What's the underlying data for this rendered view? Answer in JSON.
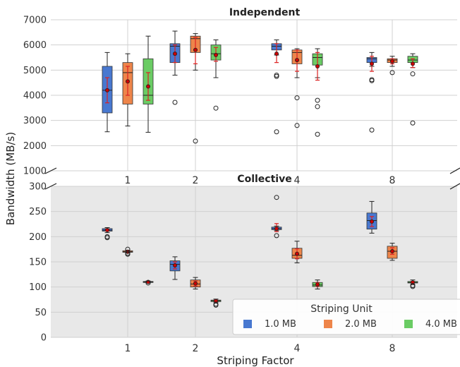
{
  "chart_data": [
    {
      "type": "box",
      "title": "Independent",
      "xlabel": "Striping Factor",
      "ylabel": "Bandwidth (MB/s)",
      "ylim": [
        1000,
        7000
      ],
      "yticks": [
        1000,
        2000,
        3000,
        4000,
        5000,
        6000,
        7000
      ],
      "background": "#ffffff",
      "grid": true,
      "categories": [
        "1",
        "2",
        "4",
        "8"
      ],
      "series": [
        {
          "name": "1.0 MB",
          "color": "#4878d0",
          "boxes": [
            {
              "min": 2550,
              "q1": 3300,
              "median": 4200,
              "q3": 5150,
              "max": 5700,
              "mean": 4200,
              "err": [
                3700,
                4700
              ],
              "outliers": []
            },
            {
              "min": 4800,
              "q1": 5300,
              "median": 5950,
              "q3": 6050,
              "max": 6550,
              "mean": 5650,
              "err": [
                5300,
                6000
              ],
              "outliers": [
                3720
              ]
            },
            {
              "min": 5600,
              "q1": 5800,
              "median": 5950,
              "q3": 6050,
              "max": 6200,
              "mean": 5650,
              "err": [
                5300,
                6050
              ],
              "outliers": [
                4800,
                4750,
                2550
              ]
            },
            {
              "min": 5150,
              "q1": 5300,
              "median": 5450,
              "q3": 5500,
              "max": 5700,
              "mean": 5250,
              "err": [
                4950,
                5550
              ],
              "outliers": [
                4620,
                4580,
                2620
              ]
            }
          ]
        },
        {
          "name": "2.0 MB",
          "color": "#ee854a",
          "boxes": [
            {
              "min": 2780,
              "q1": 3650,
              "median": 4900,
              "q3": 5300,
              "max": 5650,
              "mean": 4550,
              "err": [
                4000,
                5150
              ],
              "outliers": []
            },
            {
              "min": 5000,
              "q1": 5700,
              "median": 6250,
              "q3": 6350,
              "max": 6450,
              "mean": 5800,
              "err": [
                5250,
                6300
              ],
              "outliers": [
                2180
              ]
            },
            {
              "min": 4700,
              "q1": 5250,
              "median": 5700,
              "q3": 5800,
              "max": 5850,
              "mean": 5400,
              "err": [
                4950,
                5800
              ],
              "outliers": [
                3900,
                2800
              ]
            },
            {
              "min": 5150,
              "q1": 5300,
              "median": 5400,
              "q3": 5450,
              "max": 5550,
              "mean": 5350,
              "err": [
                5250,
                5450
              ],
              "outliers": [
                4900
              ]
            }
          ]
        },
        {
          "name": "4.0 MB",
          "color": "#6acc64",
          "boxes": [
            {
              "min": 2530,
              "q1": 3650,
              "median": 4000,
              "q3": 5450,
              "max": 6350,
              "mean": 4350,
              "err": [
                3800,
                4900
              ],
              "outliers": []
            },
            {
              "min": 4700,
              "q1": 5400,
              "median": 5650,
              "q3": 6000,
              "max": 6200,
              "mean": 5600,
              "err": [
                5350,
                5900
              ],
              "outliers": [
                3490
              ]
            },
            {
              "min": 4700,
              "q1": 5200,
              "median": 5500,
              "q3": 5650,
              "max": 5850,
              "mean": 5150,
              "err": [
                4600,
                5700
              ],
              "outliers": [
                3800,
                3550,
                2450
              ]
            },
            {
              "min": 5100,
              "q1": 5300,
              "median": 5400,
              "q3": 5550,
              "max": 5650,
              "mean": 5250,
              "err": [
                5100,
                5450
              ],
              "outliers": [
                4850,
                2900
              ]
            }
          ]
        }
      ]
    },
    {
      "type": "box",
      "title": "Collective",
      "xlabel": "Striping Factor",
      "ylabel": "Bandwidth (MB/s)",
      "ylim": [
        0,
        300
      ],
      "yticks": [
        0,
        50,
        100,
        150,
        200,
        250,
        300
      ],
      "background": "#e8e8e8",
      "grid": true,
      "categories": [
        "1",
        "2",
        "4",
        "8"
      ],
      "series": [
        {
          "name": "1.0 MB",
          "color": "#4878d0",
          "boxes": [
            {
              "min": 208,
              "q1": 211,
              "median": 213,
              "q3": 216,
              "max": 218,
              "mean": 213,
              "err": [
                211,
                215
              ],
              "outliers": [
                200,
                198
              ]
            },
            {
              "min": 115,
              "q1": 132,
              "median": 145,
              "q3": 152,
              "max": 160,
              "mean": 143,
              "err": [
                136,
                150
              ],
              "outliers": []
            },
            {
              "min": 212,
              "q1": 214,
              "median": 216,
              "q3": 219,
              "max": 221,
              "mean": 216,
              "err": [
                210,
                226
              ],
              "outliers": [
                278,
                202
              ]
            },
            {
              "min": 207,
              "q1": 215,
              "median": 232,
              "q3": 247,
              "max": 270,
              "mean": 230,
              "err": [
                220,
                240
              ],
              "outliers": []
            }
          ]
        },
        {
          "name": "2.0 MB",
          "color": "#ee854a",
          "boxes": [
            {
              "min": 168,
              "q1": 169,
              "median": 170,
              "q3": 172,
              "max": 173,
              "mean": 170,
              "err": [
                169,
                172
              ],
              "outliers": [
                175,
                167,
                165
              ]
            },
            {
              "min": 96,
              "q1": 100,
              "median": 106,
              "q3": 114,
              "max": 119,
              "mean": 107,
              "err": [
                102,
                112
              ],
              "outliers": []
            },
            {
              "min": 148,
              "q1": 157,
              "median": 163,
              "q3": 177,
              "max": 191,
              "mean": 166,
              "err": [
                156,
                176
              ],
              "outliers": []
            },
            {
              "min": 153,
              "q1": 157,
              "median": 171,
              "q3": 181,
              "max": 187,
              "mean": 171,
              "err": [
                165,
                178
              ],
              "outliers": []
            }
          ]
        },
        {
          "name": "4.0 MB",
          "color": "#6acc64",
          "boxes": [
            {
              "min": 108,
              "q1": 109,
              "median": 110,
              "q3": 111,
              "max": 112,
              "mean": 110,
              "err": [
                109,
                111
              ],
              "outliers": [
                108
              ]
            },
            {
              "min": 70,
              "q1": 71,
              "median": 73,
              "q3": 74,
              "max": 76,
              "mean": 72,
              "err": [
                71,
                74
              ],
              "outliers": [
                66,
                64
              ]
            },
            {
              "min": 96,
              "q1": 101,
              "median": 104,
              "q3": 109,
              "max": 114,
              "mean": 105,
              "err": [
                101,
                109
              ],
              "outliers": []
            },
            {
              "min": 105,
              "q1": 108,
              "median": 109,
              "q3": 111,
              "max": 114,
              "mean": 109,
              "err": [
                108,
                111
              ],
              "outliers": [
                103,
                101
              ]
            }
          ]
        }
      ]
    }
  ],
  "legend": {
    "title": "Striping Unit",
    "placement": "lower-right",
    "items": [
      {
        "label": "1.0 MB",
        "color": "#4878d0"
      },
      {
        "label": "2.0 MB",
        "color": "#ee854a"
      },
      {
        "label": "4.0 MB",
        "color": "#6acc64"
      }
    ]
  },
  "style": {
    "mean_marker_color": "#cc0000",
    "error_bar_color": "#dd2222",
    "grid_color": "#d0d0d0",
    "axis_color": "#333333"
  }
}
